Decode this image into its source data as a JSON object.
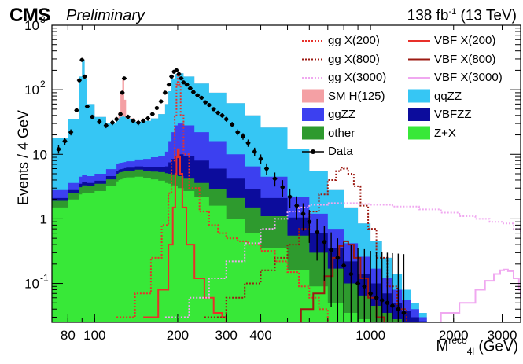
{
  "header": {
    "experiment": "CMS",
    "status": "Preliminary",
    "lumi": "138 fb",
    "lumi_exp": "-1",
    "energy": "(13 TeV)"
  },
  "chart_data": {
    "type": "area",
    "ylabel": "Events / 4 GeV",
    "xlabel_main": "M",
    "xlabel_sub": "4l",
    "xlabel_sup": "reco",
    "xlabel_unit": "(GeV)",
    "xscale": "log",
    "yscale": "log",
    "xlim": [
      70,
      3500
    ],
    "ylim": [
      0.025,
      1000
    ],
    "xticks": [
      {
        "v": 80,
        "label": "80"
      },
      {
        "v": 100,
        "label": "100"
      },
      {
        "v": 200,
        "label": "200"
      },
      {
        "v": 300,
        "label": "300"
      },
      {
        "v": 400,
        "label": "400"
      },
      {
        "v": 1000,
        "label": "1000"
      },
      {
        "v": 2000,
        "label": "2000"
      },
      {
        "v": 3000,
        "label": "3000"
      }
    ],
    "yticks": [
      {
        "v": 0.1,
        "base": "10",
        "exp": "-1"
      },
      {
        "v": 1,
        "base": "1",
        "exp": ""
      },
      {
        "v": 10,
        "base": "10",
        "exp": ""
      },
      {
        "v": 100,
        "base": "10",
        "exp": "2"
      },
      {
        "v": 1000,
        "base": "10",
        "exp": "3"
      }
    ],
    "legend_placement": "top-right",
    "legend": [
      {
        "label": "gg X(200)",
        "kind": "dashed",
        "color": "#e8302a"
      },
      {
        "label": "VBF X(200)",
        "kind": "line",
        "color": "#e8302a"
      },
      {
        "label": "gg X(800)",
        "kind": "dashed",
        "color": "#9c1a12"
      },
      {
        "label": "VBF X(800)",
        "kind": "line",
        "color": "#9c1a12"
      },
      {
        "label": "gg X(3000)",
        "kind": "dashed",
        "color": "#f0a8f0"
      },
      {
        "label": "VBF X(3000)",
        "kind": "line",
        "color": "#f0a8f0"
      },
      {
        "label": "SM H(125)",
        "kind": "box",
        "color": "#f4a0a4"
      },
      {
        "label": "qqZZ",
        "kind": "box",
        "color": "#36c6f4"
      },
      {
        "label": "ggZZ",
        "kind": "box",
        "color": "#3c40f0"
      },
      {
        "label": "VBFZZ",
        "kind": "box",
        "color": "#0c0c9c"
      },
      {
        "label": "other",
        "kind": "box",
        "color": "#2e9a2e"
      },
      {
        "label": "Z+X",
        "kind": "box",
        "color": "#38e838"
      },
      {
        "label": "Data",
        "kind": "marker",
        "color": "#000000"
      }
    ],
    "stack_colors": {
      "zx": "#38e838",
      "other": "#2e9a2e",
      "vbfzz": "#0c0c9c",
      "ggzz": "#3c40f0",
      "qqzz": "#36c6f4",
      "smh": "#f4a0a4"
    },
    "stack_cumulative": {
      "x": [
        70,
        80,
        88,
        90,
        92,
        94,
        100,
        110,
        120,
        122,
        124,
        126,
        128,
        130,
        140,
        150,
        160,
        170,
        180,
        185,
        190,
        195,
        200,
        210,
        230,
        260,
        300,
        350,
        400,
        500,
        600,
        700,
        800,
        900,
        1000,
        1100,
        1200,
        1300,
        1400,
        1500,
        1600
      ],
      "zx": [
        1.5,
        2.0,
        2.4,
        2.5,
        2.5,
        2.5,
        2.7,
        3.2,
        3.8,
        4.0,
        4.1,
        4.2,
        4.3,
        4.4,
        4.5,
        4.3,
        4.1,
        3.9,
        3.6,
        3.5,
        3.3,
        3.2,
        3.0,
        2.7,
        2.2,
        1.6,
        1.0,
        0.6,
        0.35,
        0.16,
        0.09,
        0.05,
        0.035,
        0.028,
        0.025,
        0.025,
        0.025,
        0.025,
        0.025,
        0.025,
        0.025
      ],
      "other": [
        1.9,
        2.5,
        3.1,
        3.3,
        3.3,
        3.2,
        3.5,
        4.1,
        5.0,
        5.2,
        5.3,
        5.4,
        5.5,
        5.6,
        5.8,
        5.6,
        5.4,
        5.3,
        5.1,
        5.0,
        4.9,
        4.8,
        4.6,
        4.2,
        3.6,
        2.9,
        2.1,
        1.5,
        1.1,
        0.55,
        0.3,
        0.17,
        0.1,
        0.065,
        0.045,
        0.035,
        0.028,
        0.025,
        0.025,
        0.025,
        0.025
      ],
      "vbfzz": [
        2.1,
        2.8,
        3.5,
        3.7,
        3.7,
        3.6,
        3.9,
        4.6,
        5.6,
        5.8,
        5.9,
        6.0,
        6.1,
        6.2,
        6.5,
        6.4,
        6.3,
        6.3,
        6.5,
        7.5,
        8.5,
        9.5,
        10.0,
        9.5,
        8.0,
        6.0,
        4.2,
        2.9,
        2.1,
        1.05,
        0.6,
        0.35,
        0.22,
        0.14,
        0.1,
        0.07,
        0.05,
        0.038,
        0.03,
        0.026,
        0.025
      ],
      "ggzz": [
        2.8,
        3.6,
        4.5,
        4.8,
        4.8,
        4.6,
        5.0,
        5.9,
        7.0,
        7.3,
        7.4,
        7.5,
        7.6,
        7.8,
        8.3,
        8.5,
        9.0,
        9.5,
        11,
        16,
        22,
        28,
        30,
        28,
        22,
        16,
        10,
        6.5,
        4.5,
        2.2,
        1.2,
        0.7,
        0.42,
        0.26,
        0.17,
        0.12,
        0.08,
        0.055,
        0.04,
        0.03,
        0.025
      ],
      "qqzz": [
        18,
        35,
        160,
        290,
        150,
        60,
        38,
        30,
        33,
        36,
        38,
        39,
        38,
        35,
        32,
        33,
        36,
        42,
        60,
        95,
        150,
        175,
        180,
        160,
        125,
        90,
        62,
        40,
        26,
        12,
        5.5,
        2.8,
        1.5,
        0.85,
        0.45,
        0.25,
        0.14,
        0.08,
        0.05,
        0.035,
        0.025
      ],
      "smh": [
        18,
        35,
        160,
        290,
        150,
        60,
        38,
        30,
        33,
        45,
        95,
        150,
        70,
        36,
        32,
        33,
        36,
        42,
        60,
        95,
        150,
        175,
        180,
        160,
        125,
        90,
        62,
        40,
        26,
        12,
        5.5,
        2.8,
        1.5,
        0.85,
        0.45,
        0.25,
        0.14,
        0.08,
        0.05,
        0.035,
        0.025
      ]
    },
    "signals": [
      {
        "name": "gg X(200)",
        "style": "dashed",
        "color": "#e8302a",
        "x": [
          120,
          140,
          160,
          175,
          185,
          190,
          195,
          198,
          200,
          202,
          205,
          210,
          220,
          240,
          260,
          280,
          300,
          330,
          360,
          400,
          450,
          500,
          550,
          600,
          650,
          700
        ],
        "y": [
          0.03,
          0.07,
          0.25,
          0.8,
          2.5,
          8,
          40,
          120,
          170,
          120,
          40,
          10,
          3.0,
          1.3,
          0.8,
          0.6,
          0.5,
          0.45,
          0.4,
          0.32,
          0.22,
          0.15,
          0.09,
          0.06,
          0.04,
          0.025
        ]
      },
      {
        "name": "VBF X(200)",
        "style": "line",
        "color": "#e8302a",
        "x": [
          150,
          170,
          185,
          192,
          196,
          198,
          200,
          202,
          204,
          208,
          215,
          230,
          250,
          270,
          290,
          300
        ],
        "y": [
          0.03,
          0.08,
          0.4,
          1.5,
          5,
          9,
          12,
          9,
          5,
          1.5,
          0.4,
          0.12,
          0.06,
          0.035,
          0.03,
          0.025
        ]
      },
      {
        "name": "gg X(800)",
        "style": "dashed",
        "color": "#9c1a12",
        "x": [
          250,
          300,
          350,
          400,
          450,
          500,
          550,
          600,
          650,
          700,
          750,
          780,
          800,
          830,
          870,
          920,
          980,
          1050,
          1150,
          1250,
          1350
        ],
        "y": [
          0.03,
          0.06,
          0.1,
          0.16,
          0.25,
          0.4,
          0.7,
          1.3,
          2.4,
          4.0,
          5.5,
          6.2,
          6.0,
          5.0,
          3.2,
          1.6,
          0.7,
          0.25,
          0.09,
          0.04,
          0.025
        ]
      },
      {
        "name": "VBF X(800)",
        "style": "line",
        "color": "#9c1a12",
        "x": [
          500,
          560,
          620,
          680,
          730,
          770,
          800,
          830,
          870,
          920,
          980,
          1050,
          1120
        ],
        "y": [
          0.025,
          0.04,
          0.07,
          0.13,
          0.25,
          0.38,
          0.45,
          0.4,
          0.25,
          0.12,
          0.06,
          0.03,
          0.025
        ]
      },
      {
        "name": "gg X(3000)",
        "style": "dashed",
        "color": "#f0a8f0",
        "x": [
          180,
          220,
          260,
          300,
          350,
          400,
          450,
          500,
          550,
          600,
          700,
          800,
          900,
          1000,
          1200,
          1500,
          1800,
          2100,
          2400,
          2700,
          3000,
          3300,
          3500
        ],
        "y": [
          0.03,
          0.06,
          0.12,
          0.22,
          0.42,
          0.7,
          1.0,
          1.3,
          1.5,
          1.65,
          1.75,
          1.75,
          1.7,
          1.65,
          1.55,
          1.4,
          1.25,
          1.1,
          1.0,
          0.9,
          0.85,
          0.7,
          0.6
        ]
      },
      {
        "name": "VBF X(3000)",
        "style": "line",
        "color": "#f0a8f0",
        "x": [
          1500,
          1800,
          2100,
          2400,
          2600,
          2800,
          2950,
          3050,
          3150,
          3300,
          3450,
          3500
        ],
        "y": [
          0.025,
          0.035,
          0.05,
          0.08,
          0.11,
          0.14,
          0.16,
          0.165,
          0.155,
          0.12,
          0.08,
          0.06
        ]
      }
    ],
    "data_points": {
      "x": [
        74,
        78,
        82,
        86,
        88,
        90,
        92,
        94,
        98,
        104,
        110,
        116,
        120,
        124,
        126,
        128,
        132,
        138,
        144,
        150,
        156,
        162,
        168,
        174,
        180,
        186,
        190,
        194,
        198,
        202,
        206,
        210,
        216,
        222,
        228,
        236,
        244,
        252,
        260,
        270,
        280,
        290,
        300,
        315,
        330,
        345,
        360,
        380,
        400,
        420,
        450,
        480,
        510,
        540,
        570,
        600,
        640,
        680,
        720,
        760,
        800,
        850,
        900,
        950,
        1000,
        1050,
        1100,
        1150,
        1200,
        1260,
        1320
      ],
      "y": [
        12,
        16,
        22,
        48,
        140,
        290,
        160,
        55,
        38,
        32,
        28,
        31,
        35,
        42,
        90,
        150,
        38,
        33,
        31,
        33,
        36,
        42,
        52,
        66,
        90,
        120,
        160,
        190,
        200,
        175,
        150,
        130,
        120,
        105,
        92,
        82,
        75,
        64,
        58,
        50,
        44,
        40,
        35,
        29,
        22,
        19,
        15,
        11,
        8.5,
        6.0,
        4.2,
        3.1,
        2.2,
        1.6,
        1.2,
        0.9,
        0.62,
        0.44,
        0.33,
        0.25,
        0.19,
        0.14,
        0.1,
        0.09,
        0.07,
        0.06,
        0.055,
        0.05,
        0.045,
        0.04,
        0.035
      ]
    }
  }
}
